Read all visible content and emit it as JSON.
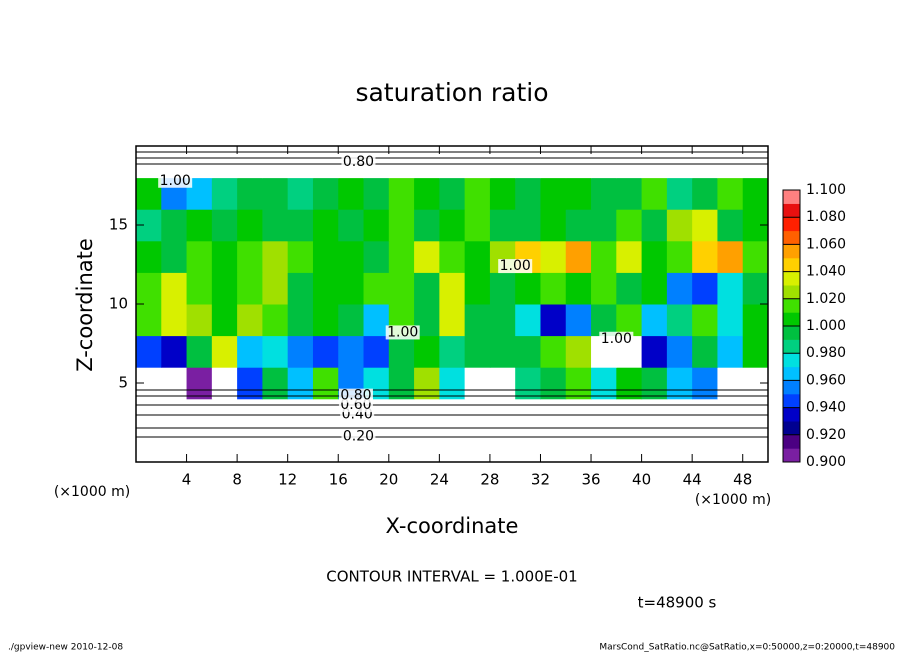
{
  "chart_data": {
    "type": "contour",
    "title": "saturation ratio",
    "xlabel": "X-coordinate",
    "ylabel": "Z-coordinate",
    "xunit": "(×1000 m)",
    "yunit": "(×1000 m)",
    "xlim": [
      0,
      50
    ],
    "ylim": [
      0,
      20
    ],
    "xticks": [
      4,
      8,
      12,
      16,
      20,
      24,
      28,
      32,
      36,
      40,
      44,
      48
    ],
    "yticks": [
      5,
      10,
      15
    ],
    "x": [
      1,
      3,
      5,
      7,
      9,
      11,
      13,
      15,
      17,
      19,
      21,
      23,
      25,
      27,
      29,
      31,
      33,
      35,
      37,
      39,
      41,
      43,
      45,
      47,
      49
    ],
    "z": [
      1,
      3,
      5,
      7,
      9,
      11,
      13,
      15,
      17,
      19
    ],
    "values": [
      [
        0.2,
        0.2,
        0.2,
        0.2,
        0.2,
        0.2,
        0.2,
        0.2,
        0.2,
        0.2,
        0.2,
        0.2,
        0.2,
        0.2,
        0.2,
        0.2,
        0.2,
        0.2,
        0.2,
        0.2,
        0.2,
        0.2,
        0.2,
        0.2,
        0.2
      ],
      [
        0.55,
        0.55,
        0.55,
        0.55,
        0.55,
        0.55,
        0.55,
        0.55,
        0.55,
        0.55,
        0.55,
        0.55,
        0.55,
        0.55,
        0.55,
        0.55,
        0.55,
        0.55,
        0.55,
        0.55,
        0.55,
        0.55,
        0.55,
        0.55,
        0.55
      ],
      [
        0.85,
        0.85,
        0.9,
        0.88,
        0.95,
        1.0,
        0.97,
        1.02,
        0.96,
        0.98,
        1.0,
        1.03,
        0.98,
        0.85,
        0.88,
        0.99,
        1.0,
        1.02,
        0.98,
        1.01,
        1.0,
        0.97,
        0.96,
        0.85,
        0.88
      ],
      [
        0.95,
        0.94,
        1.0,
        1.04,
        0.97,
        0.98,
        0.96,
        0.95,
        0.96,
        0.95,
        1.0,
        1.01,
        0.99,
        1.0,
        1.0,
        1.0,
        1.02,
        1.03,
        0.88,
        0.86,
        0.94,
        0.96,
        1.0,
        0.97,
        1.01
      ],
      [
        1.02,
        1.04,
        1.03,
        1.01,
        1.03,
        1.02,
        1.0,
        1.01,
        1.0,
        0.97,
        1.02,
        1.0,
        1.04,
        1.0,
        1.0,
        0.98,
        0.94,
        0.96,
        1.0,
        1.02,
        0.97,
        0.99,
        1.02,
        0.98,
        1.01
      ],
      [
        1.02,
        1.04,
        1.02,
        1.01,
        1.02,
        1.03,
        1.0,
        1.01,
        1.01,
        1.02,
        1.02,
        1.0,
        1.04,
        1.01,
        1.0,
        1.01,
        1.02,
        1.01,
        1.02,
        1.0,
        1.01,
        0.96,
        0.95,
        0.98,
        1.0
      ],
      [
        1.01,
        1.0,
        1.02,
        1.01,
        1.02,
        1.03,
        1.02,
        1.01,
        1.01,
        1.0,
        1.02,
        1.04,
        1.02,
        1.01,
        1.03,
        1.05,
        1.04,
        1.06,
        1.02,
        1.04,
        1.01,
        1.02,
        1.05,
        1.06,
        1.02
      ],
      [
        0.99,
        1.0,
        1.01,
        1.0,
        1.01,
        1.0,
        1.0,
        1.01,
        1.0,
        1.01,
        1.02,
        1.0,
        1.01,
        1.02,
        1.0,
        1.0,
        1.01,
        1.0,
        1.0,
        1.02,
        1.0,
        1.03,
        1.04,
        1.0,
        1.01
      ],
      [
        1.01,
        0.96,
        0.97,
        0.99,
        1.0,
        1.0,
        0.99,
        1.0,
        1.01,
        1.0,
        1.02,
        1.01,
        1.0,
        1.02,
        1.01,
        1.0,
        1.01,
        1.01,
        1.0,
        1.0,
        1.02,
        0.99,
        1.0,
        1.02,
        1.01
      ],
      [
        0.8,
        0.8,
        0.8,
        0.8,
        0.8,
        0.8,
        0.8,
        0.8,
        0.8,
        0.8,
        0.8,
        0.8,
        0.8,
        0.8,
        0.8,
        0.8,
        0.8,
        0.8,
        0.8,
        0.8,
        0.8,
        0.8,
        0.8,
        0.8,
        0.8
      ]
    ],
    "clim": [
      0.9,
      1.1
    ],
    "colors": [
      "#7a1fa2",
      "#4b0082",
      "#000090",
      "#0000c8",
      "#0040ff",
      "#0080ff",
      "#00c0ff",
      "#00e0e0",
      "#00d080",
      "#00c040",
      "#00c800",
      "#40e000",
      "#a0e000",
      "#d8f000",
      "#ffd000",
      "#ffa000",
      "#ff6000",
      "#ff2000",
      "#e81010",
      "#ff8080"
    ],
    "cticks": [
      {
        "value": 0.9,
        "label": "0.900"
      },
      {
        "value": 0.92,
        "label": "0.920"
      },
      {
        "value": 0.94,
        "label": "0.940"
      },
      {
        "value": 0.96,
        "label": "0.960"
      },
      {
        "value": 0.98,
        "label": "0.980"
      },
      {
        "value": 1.0,
        "label": "1.000"
      },
      {
        "value": 1.02,
        "label": "1.020"
      },
      {
        "value": 1.04,
        "label": "1.040"
      },
      {
        "value": 1.06,
        "label": "1.060"
      },
      {
        "value": 1.08,
        "label": "1.080"
      },
      {
        "value": 1.1,
        "label": "1.100"
      }
    ],
    "contour_labels": [
      {
        "text": "0.20",
        "x": 17.6,
        "z": 1.6
      },
      {
        "text": "0.40",
        "x": 17.5,
        "z": 3.0
      },
      {
        "text": "0.60",
        "x": 17.4,
        "z": 3.6
      },
      {
        "text": "0.80",
        "x": 17.4,
        "z": 4.2
      },
      {
        "text": "0.80",
        "x": 17.6,
        "z": 19.0
      },
      {
        "text": "1.00",
        "x": 3.1,
        "z": 17.8
      },
      {
        "text": "1.00",
        "x": 30.0,
        "z": 12.4
      },
      {
        "text": "1.00",
        "x": 38.0,
        "z": 7.8
      },
      {
        "text": "1.00",
        "x": 21.1,
        "z": 8.2
      }
    ],
    "annotations": [
      "CONTOUR INTERVAL = 1.000E-01",
      "t=48900 s"
    ],
    "footer_left": "./gpview-new   2010-12-08",
    "footer_right": "MarsCond_SatRatio.nc@SatRatio,x=0:50000,z=0:20000,t=48900"
  }
}
